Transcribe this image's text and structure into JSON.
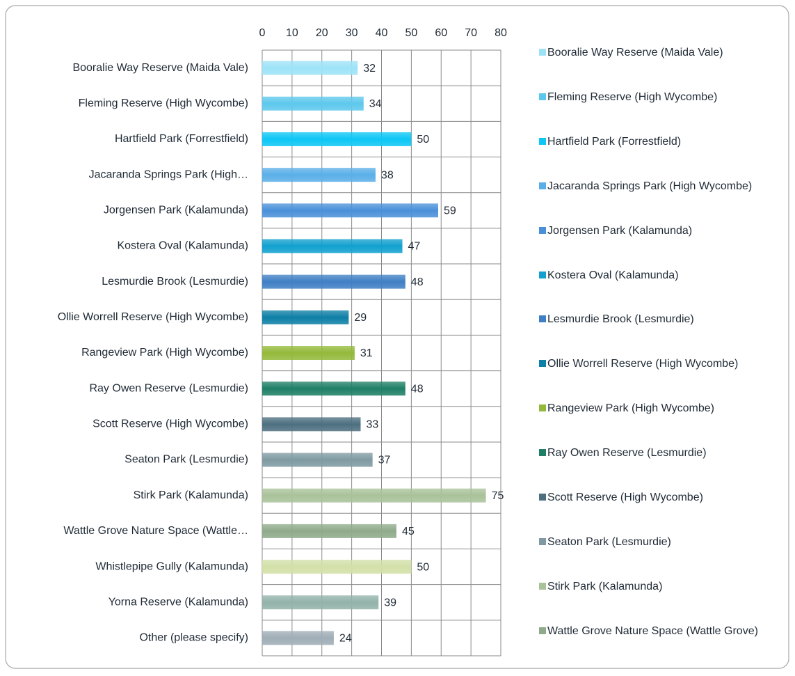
{
  "chart_data": {
    "type": "bar",
    "orientation": "horizontal",
    "categories": [
      "Booralie Way Reserve (Maida Vale)",
      "Fleming Reserve (High Wycombe)",
      "Hartfield Park (Forrestfield)",
      "Jacaranda Springs Park (High…",
      "Jorgensen Park (Kalamunda)",
      "Kostera Oval (Kalamunda)",
      "Lesmurdie Brook (Lesmurdie)",
      "Ollie Worrell Reserve (High Wycombe)",
      "Rangeview Park (High Wycombe)",
      "Ray Owen Reserve (Lesmurdie)",
      "Scott Reserve (High Wycombe)",
      "Seaton Park (Lesmurdie)",
      "Stirk Park (Kalamunda)",
      "Wattle Grove Nature Space (Wattle…",
      "Whistlepipe Gully (Kalamunda)",
      "Yorna Reserve (Kalamunda)",
      "Other (please specify)"
    ],
    "values": [
      32,
      34,
      50,
      38,
      59,
      47,
      48,
      29,
      31,
      48,
      33,
      37,
      75,
      45,
      50,
      39,
      24
    ],
    "colors": [
      "#9de3f7",
      "#5ec8ec",
      "#0cc6f5",
      "#5aafe8",
      "#4a90d9",
      "#11a0cf",
      "#3f7fc4",
      "#0e7fa6",
      "#93b93a",
      "#1f7f66",
      "#4d6f80",
      "#7f9aa2",
      "#a9c29a",
      "#8faa8a",
      "#d2e0a8",
      "#92b2aa",
      "#9fadb6"
    ],
    "xlim": [
      0,
      80
    ],
    "xticks": [
      0,
      10,
      20,
      30,
      40,
      50,
      60,
      70,
      80
    ],
    "grid": true,
    "legend": [
      {
        "name": "Booralie Way Reserve (Maida Vale)",
        "color": "#9de3f7"
      },
      {
        "name": "Fleming Reserve (High Wycombe)",
        "color": "#5ec8ec"
      },
      {
        "name": "Hartfield Park (Forrestfield)",
        "color": "#0cc6f5"
      },
      {
        "name": "Jacaranda Springs Park (High Wycombe)",
        "color": "#5aafe8"
      },
      {
        "name": "Jorgensen Park (Kalamunda)",
        "color": "#4a90d9"
      },
      {
        "name": "Kostera Oval (Kalamunda)",
        "color": "#11a0cf"
      },
      {
        "name": "Lesmurdie Brook (Lesmurdie)",
        "color": "#3f7fc4"
      },
      {
        "name": "Ollie Worrell Reserve (High Wycombe)",
        "color": "#0e7fa6"
      },
      {
        "name": "Rangeview Park (High Wycombe)",
        "color": "#93b93a"
      },
      {
        "name": "Ray Owen Reserve (Lesmurdie)",
        "color": "#1f7f66"
      },
      {
        "name": "Scott Reserve (High Wycombe)",
        "color": "#4d6f80"
      },
      {
        "name": "Seaton Park (Lesmurdie)",
        "color": "#7f9aa2"
      },
      {
        "name": "Stirk Park (Kalamunda)",
        "color": "#a9c29a"
      },
      {
        "name": "Wattle Grove Nature Space (Wattle Grove)",
        "color": "#8faa8a"
      }
    ]
  }
}
